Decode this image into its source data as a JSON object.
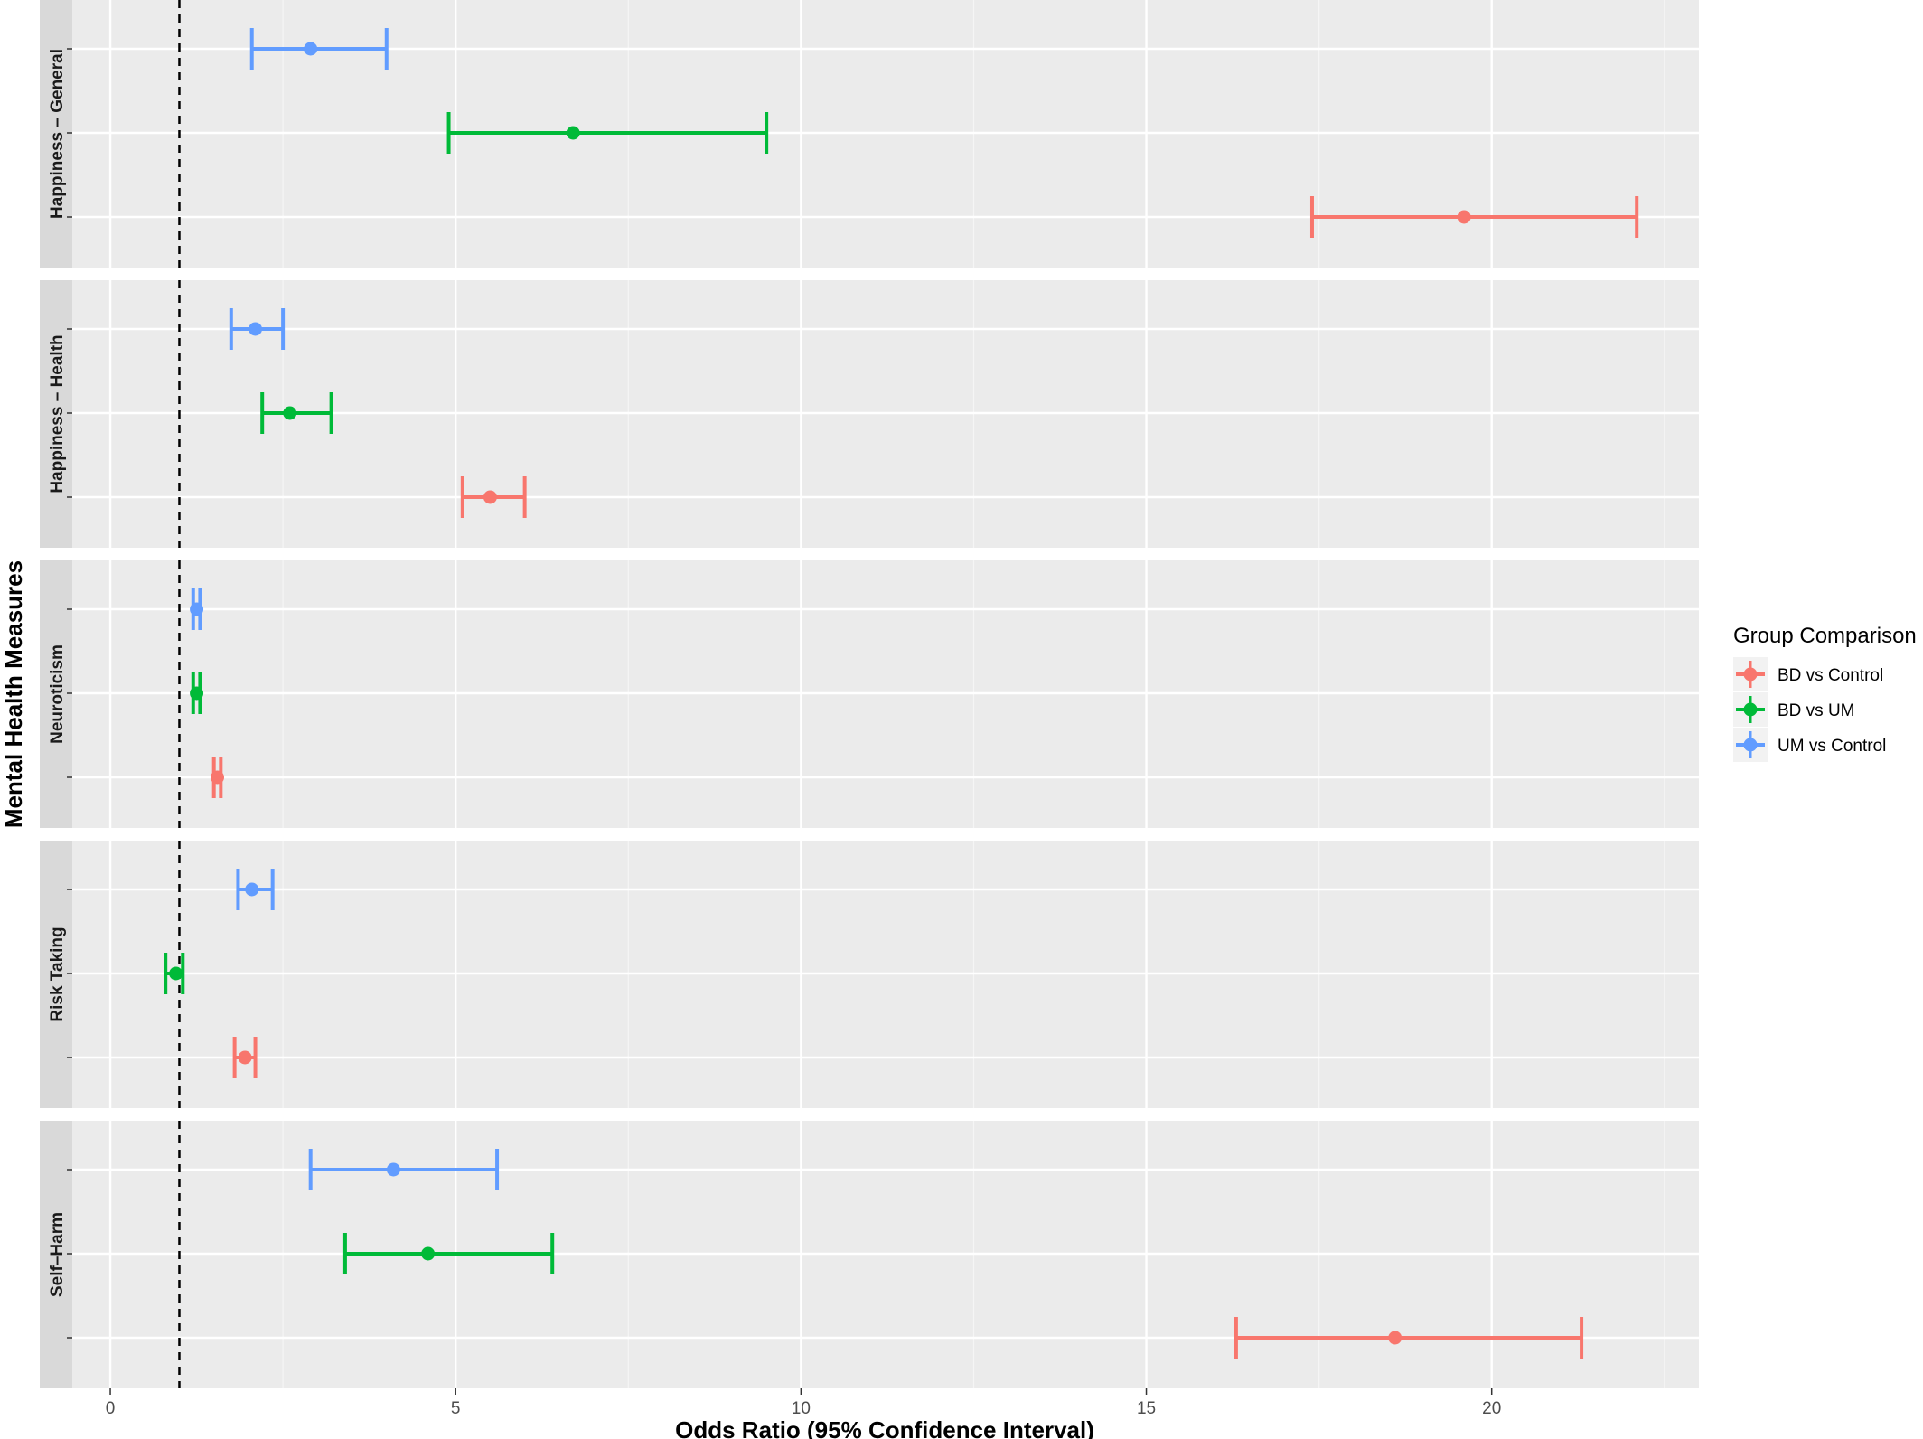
{
  "chart_data": {
    "type": "forest",
    "title": "",
    "xlabel": "Odds Ratio (95% Confidence Interval)",
    "ylabel": "Mental Health Measures",
    "xlim": [
      -0.55,
      23.0
    ],
    "x_ticks": [
      0,
      5,
      10,
      15,
      20
    ],
    "x_tick_labels": [
      "0",
      "5",
      "10",
      "15",
      "20"
    ],
    "reference_line": 1,
    "grid": true,
    "legend_position": "right",
    "legend_title": "Group Comparison",
    "series": [
      {
        "name": "BD vs Control",
        "color": "#F8766D"
      },
      {
        "name": "BD vs UM",
        "color": "#00BA38"
      },
      {
        "name": "UM vs Control",
        "color": "#619CFF"
      }
    ],
    "facets": [
      {
        "label": "Happiness – General",
        "points": [
          {
            "series": "UM vs Control",
            "or": 2.9,
            "lo": 2.05,
            "hi": 4.0
          },
          {
            "series": "BD vs UM",
            "or": 6.7,
            "lo": 4.9,
            "hi": 9.5
          },
          {
            "series": "BD vs Control",
            "or": 19.6,
            "lo": 17.4,
            "hi": 22.1
          }
        ]
      },
      {
        "label": "Happiness – Health",
        "points": [
          {
            "series": "UM vs Control",
            "or": 2.1,
            "lo": 1.75,
            "hi": 2.5
          },
          {
            "series": "BD vs UM",
            "or": 2.6,
            "lo": 2.2,
            "hi": 3.2
          },
          {
            "series": "BD vs Control",
            "or": 5.5,
            "lo": 5.1,
            "hi": 6.0
          }
        ]
      },
      {
        "label": "Neuroticism",
        "points": [
          {
            "series": "UM vs Control",
            "or": 1.25,
            "lo": 1.2,
            "hi": 1.3
          },
          {
            "series": "BD vs UM",
            "or": 1.25,
            "lo": 1.2,
            "hi": 1.3
          },
          {
            "series": "BD vs Control",
            "or": 1.55,
            "lo": 1.5,
            "hi": 1.6
          }
        ]
      },
      {
        "label": "Risk Taking",
        "points": [
          {
            "series": "UM vs Control",
            "or": 2.05,
            "lo": 1.85,
            "hi": 2.35
          },
          {
            "series": "BD vs UM",
            "or": 0.95,
            "lo": 0.8,
            "hi": 1.05
          },
          {
            "series": "BD vs Control",
            "or": 1.95,
            "lo": 1.8,
            "hi": 2.1
          }
        ]
      },
      {
        "label": "Self–Harm",
        "points": [
          {
            "series": "UM vs Control",
            "or": 4.1,
            "lo": 2.9,
            "hi": 5.6
          },
          {
            "series": "BD vs UM",
            "or": 4.6,
            "lo": 3.4,
            "hi": 6.4
          },
          {
            "series": "BD vs Control",
            "or": 18.6,
            "lo": 16.3,
            "hi": 21.3
          }
        ]
      }
    ]
  }
}
